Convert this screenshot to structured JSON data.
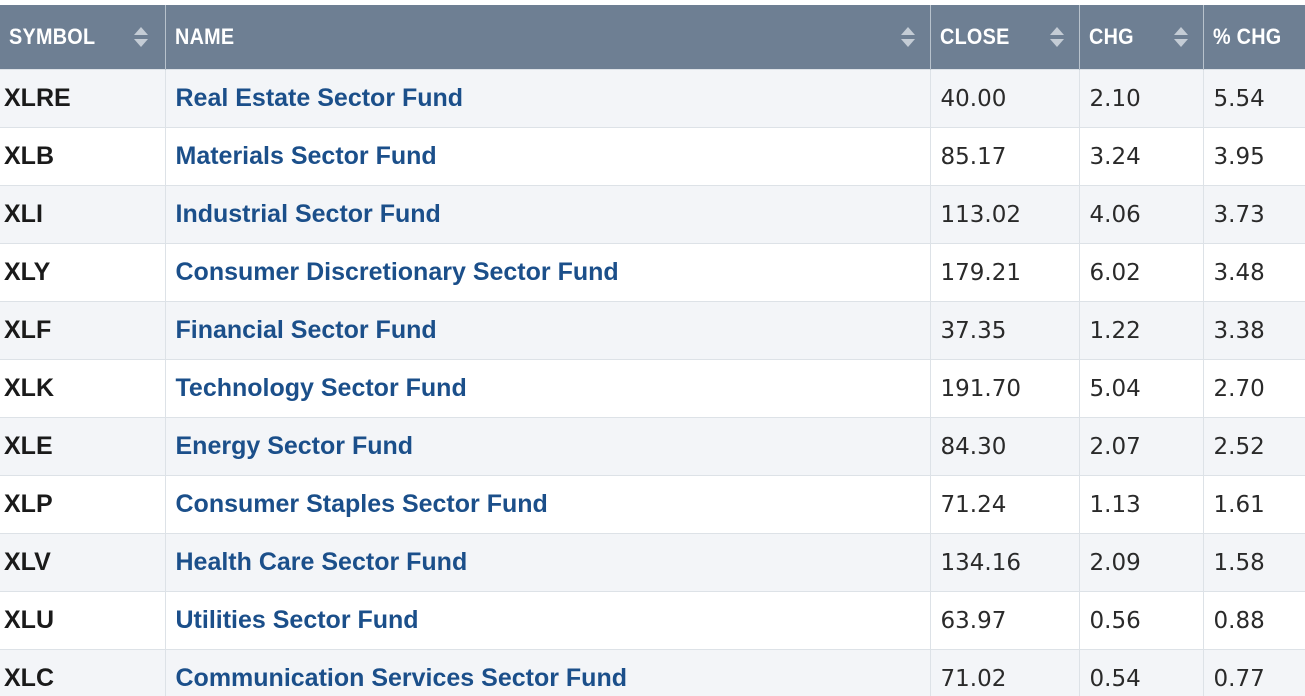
{
  "table": {
    "headers": {
      "symbol": "SYMBOL",
      "name": "NAME",
      "close": "CLOSE",
      "chg": "CHG",
      "pct_chg": "% CHG"
    },
    "sort_icon": "sort-updown-icon",
    "rows": [
      {
        "symbol": "XLRE",
        "name": "Real Estate Sector Fund",
        "close": "40.00",
        "chg": "2.10",
        "pct_chg": "5.54"
      },
      {
        "symbol": "XLB",
        "name": "Materials Sector Fund",
        "close": "85.17",
        "chg": "3.24",
        "pct_chg": "3.95"
      },
      {
        "symbol": "XLI",
        "name": "Industrial Sector Fund",
        "close": "113.02",
        "chg": "4.06",
        "pct_chg": "3.73"
      },
      {
        "symbol": "XLY",
        "name": "Consumer Discretionary Sector Fund",
        "close": "179.21",
        "chg": "6.02",
        "pct_chg": "3.48"
      },
      {
        "symbol": "XLF",
        "name": "Financial Sector Fund",
        "close": "37.35",
        "chg": "1.22",
        "pct_chg": "3.38"
      },
      {
        "symbol": "XLK",
        "name": "Technology Sector Fund",
        "close": "191.70",
        "chg": "5.04",
        "pct_chg": "2.70"
      },
      {
        "symbol": "XLE",
        "name": "Energy Sector Fund",
        "close": "84.30",
        "chg": "2.07",
        "pct_chg": "2.52"
      },
      {
        "symbol": "XLP",
        "name": "Consumer Staples Sector Fund",
        "close": "71.24",
        "chg": "1.13",
        "pct_chg": "1.61"
      },
      {
        "symbol": "XLV",
        "name": "Health Care Sector Fund",
        "close": "134.16",
        "chg": "2.09",
        "pct_chg": "1.58"
      },
      {
        "symbol": "XLU",
        "name": "Utilities Sector Fund",
        "close": "63.97",
        "chg": "0.56",
        "pct_chg": "0.88"
      },
      {
        "symbol": "XLC",
        "name": "Communication Services Sector Fund",
        "close": "71.02",
        "chg": "0.54",
        "pct_chg": "0.77"
      }
    ]
  },
  "colors": {
    "header_bg": "#6e7f93",
    "header_text": "#ffffff",
    "link": "#1b4f8a",
    "row_stripe": "#f3f5f8"
  }
}
